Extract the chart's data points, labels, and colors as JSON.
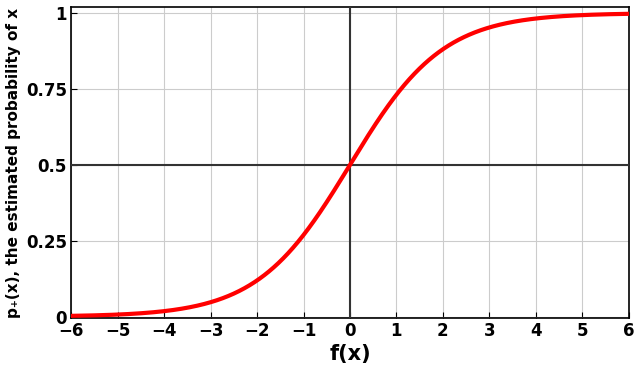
{
  "xlim": [
    -6,
    6
  ],
  "ylim": [
    -0.005,
    1.02
  ],
  "xticks": [
    -6,
    -5,
    -4,
    -3,
    -2,
    -1,
    0,
    1,
    2,
    3,
    4,
    5,
    6
  ],
  "yticks": [
    0,
    0.25,
    0.5,
    0.75,
    1
  ],
  "ytick_labels": [
    "0",
    "0.25",
    "0.5",
    "0.75",
    "1"
  ],
  "xlabel": "f(x)",
  "ylabel": "p₊(x), the estimated probability of x",
  "sigmoid_color": "#ff0000",
  "sigmoid_linewidth": 3.0,
  "hline_y": 0.5,
  "hline_color": "#333333",
  "hline_linewidth": 1.5,
  "vline_x": 0,
  "vline_color": "#333333",
  "vline_linewidth": 1.5,
  "grid_color": "#cccccc",
  "grid_linewidth": 0.8,
  "background_color": "#ffffff",
  "xlabel_fontsize": 15,
  "ylabel_fontsize": 11,
  "tick_fontsize": 12,
  "xlabel_fontweight": "bold",
  "spine_color": "#000000",
  "spine_linewidth": 1.2
}
